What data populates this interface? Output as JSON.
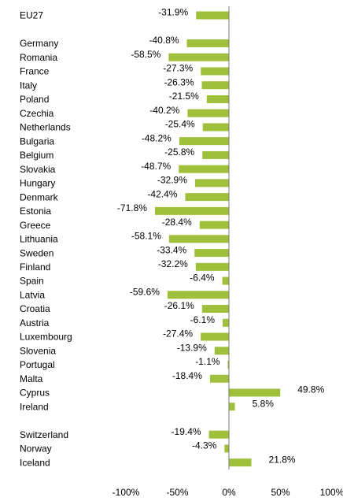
{
  "chart_data": {
    "type": "bar",
    "orientation": "horizontal",
    "color": "#9fc03a",
    "categories": [
      "EU27",
      null,
      "Germany",
      "Romania",
      "France",
      "Italy",
      "Poland",
      "Czechia",
      "Netherlands",
      "Bulgaria",
      "Belgium",
      "Slovakia",
      "Hungary",
      "Denmark",
      "Estonia",
      "Greece",
      "Lithuania",
      "Sweden",
      "Finland",
      "Spain",
      "Latvia",
      "Croatia",
      "Austria",
      "Luxembourg",
      "Slovenia",
      "Portugal",
      "Malta",
      "Cyprus",
      "Ireland",
      null,
      "Switzerland",
      "Norway",
      "Iceland"
    ],
    "values": [
      -31.9,
      null,
      -40.8,
      -58.5,
      -27.3,
      -26.3,
      -21.5,
      -40.2,
      -25.4,
      -48.2,
      -25.8,
      -48.7,
      -32.9,
      -42.4,
      -71.8,
      -28.4,
      -58.1,
      -33.4,
      -32.2,
      -6.4,
      -59.6,
      -26.1,
      -6.1,
      -27.4,
      -13.9,
      -1.1,
      -18.4,
      49.8,
      5.8,
      null,
      -19.4,
      -4.3,
      21.8
    ],
    "value_labels": [
      "-31.9%",
      null,
      "-40.8%",
      "-58.5%",
      "-27.3%",
      "-26.3%",
      "-21.5%",
      "-40.2%",
      "-25.4%",
      "-48.2%",
      "-25.8%",
      "-48.7%",
      "-32.9%",
      "-42.4%",
      "-71.8%",
      "-28.4%",
      "-58.1%",
      "-33.4%",
      "-32.2%",
      "-6.4%",
      "-59.6%",
      "-26.1%",
      "-6.1%",
      "-27.4%",
      "-13.9%",
      "-1.1%",
      "-18.4%",
      "49.8%",
      "5.8%",
      null,
      "-19.4%",
      "-4.3%",
      "21.8%"
    ],
    "xlim": [
      -100,
      100
    ],
    "xticks": [
      {
        "value": -100,
        "label": "-100%"
      },
      {
        "value": -50,
        "label": "-50%"
      },
      {
        "value": 0,
        "label": "0%"
      },
      {
        "value": 50,
        "label": "50%"
      },
      {
        "value": 100,
        "label": "100%"
      }
    ]
  }
}
